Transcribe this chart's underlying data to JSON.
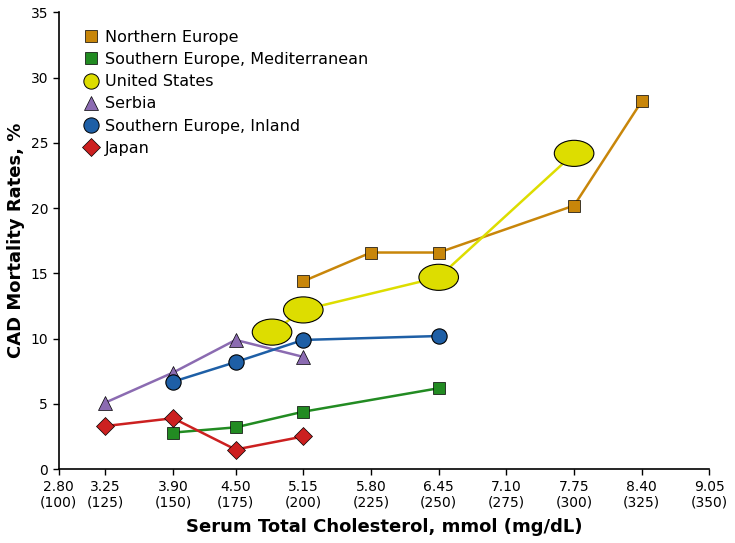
{
  "series": [
    {
      "name": "Northern Europe",
      "color": "#C8860A",
      "marker": "s",
      "markersize": 9,
      "linewidth": 1.8,
      "x": [
        5.15,
        5.8,
        6.45,
        7.75,
        8.4
      ],
      "y": [
        14.4,
        16.6,
        16.6,
        20.2,
        28.2
      ]
    },
    {
      "name": "Southern Europe, Mediterranean",
      "color": "#228B22",
      "marker": "s",
      "markersize": 9,
      "linewidth": 1.8,
      "x": [
        3.9,
        4.5,
        5.15,
        6.45
      ],
      "y": [
        2.8,
        3.2,
        4.4,
        6.2
      ]
    },
    {
      "name": "United States",
      "color": "#DDDD00",
      "marker": "o",
      "markersize": 14,
      "linewidth": 1.8,
      "x": [
        4.85,
        5.15,
        6.45,
        7.75
      ],
      "y": [
        10.5,
        12.2,
        14.7,
        24.2
      ]
    },
    {
      "name": "Serbia",
      "color": "#8B6BB1",
      "marker": "^",
      "markersize": 10,
      "linewidth": 1.8,
      "x": [
        3.25,
        3.9,
        4.5,
        5.15
      ],
      "y": [
        5.1,
        7.4,
        9.9,
        8.6
      ]
    },
    {
      "name": "Southern Europe, Inland",
      "color": "#1E5FA6",
      "marker": "o",
      "markersize": 11,
      "linewidth": 1.8,
      "x": [
        3.9,
        4.5,
        5.15,
        6.45
      ],
      "y": [
        6.7,
        8.2,
        9.9,
        10.2
      ]
    },
    {
      "name": "Japan",
      "color": "#CC2020",
      "marker": "D",
      "markersize": 9,
      "linewidth": 1.8,
      "x": [
        3.25,
        3.9,
        4.5,
        5.15
      ],
      "y": [
        3.3,
        3.9,
        1.5,
        2.5
      ]
    }
  ],
  "xlim": [
    2.8,
    9.05
  ],
  "ylim": [
    0,
    35
  ],
  "xticks_mmol": [
    2.8,
    3.25,
    3.9,
    4.5,
    5.15,
    5.8,
    6.45,
    7.1,
    7.75,
    8.4,
    9.05
  ],
  "xticks_mmol_str": [
    "2.80",
    "3.25",
    "3.90",
    "4.50",
    "5.15",
    "5.80",
    "6.45",
    "7.10",
    "7.75",
    "8.40",
    "9.05"
  ],
  "xticks_mgdl": [
    "(100)",
    "(125)",
    "(150)",
    "(175)",
    "(200)",
    "(225)",
    "(250)",
    "(275)",
    "(300)",
    "(325)",
    "(350)"
  ],
  "yticks": [
    0,
    5,
    10,
    15,
    20,
    25,
    30,
    35
  ],
  "ylabel": "CAD Mortality Rates, %",
  "xlabel": "Serum Total Cholesterol, mmol (mg/dL)",
  "axis_fontsize": 13,
  "legend_fontsize": 11.5,
  "tick_fontsize": 10,
  "background_color": "#ffffff"
}
